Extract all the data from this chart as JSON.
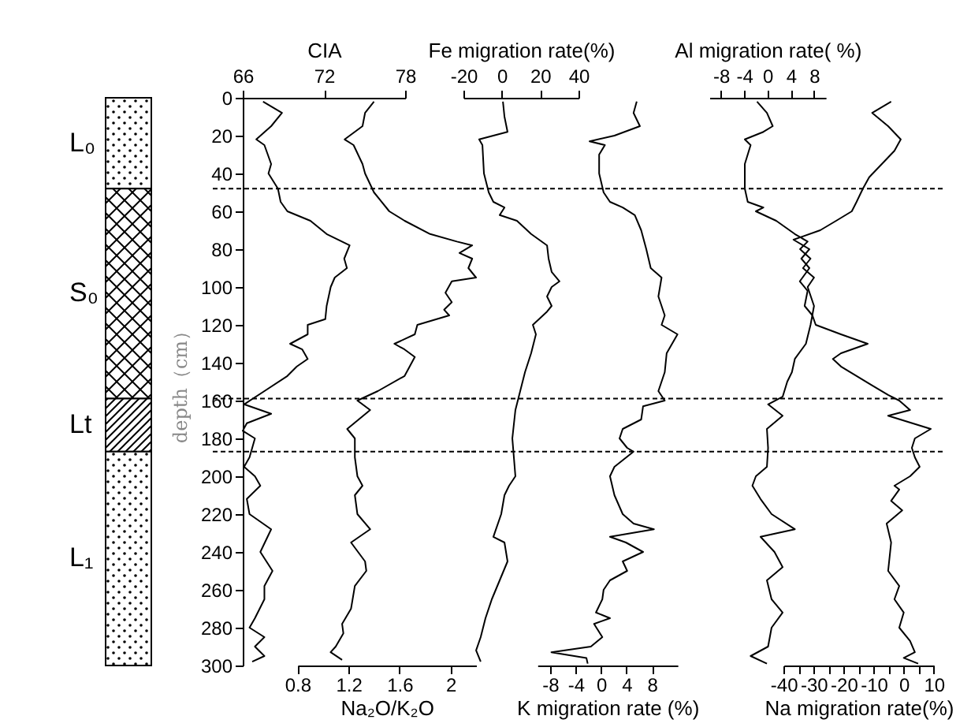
{
  "chart_data": [
    {
      "type": "line",
      "ylabel": "depth（cm）",
      "ylim": [
        300,
        0
      ],
      "yticks": [
        0,
        20,
        40,
        60,
        80,
        100,
        120,
        140,
        160,
        180,
        200,
        220,
        240,
        260,
        280,
        300
      ],
      "grid": false,
      "line_style": "solid",
      "xlabel": "Na₂O/K₂O",
      "xlim": [
        0.8,
        2.2
      ],
      "xticks": [
        0.8,
        1.2,
        1.6,
        2
      ],
      "x2label": "CIA",
      "x2lim": [
        66,
        78
      ],
      "x2ticks": [
        66,
        72,
        78
      ],
      "series": [
        {
          "axis": "x2",
          "color": "#000000",
          "x": [
            67.5,
            68.9,
            68.1,
            67.0,
            67.6,
            68.1,
            67.9,
            68.6,
            68.8,
            69.3,
            71.0,
            72.2,
            73.9,
            73.5,
            73.7,
            72.8,
            72.5,
            72.2,
            72.1,
            70.8,
            70.8,
            69.5,
            70.4,
            70.8,
            70.0,
            69.3,
            67.6,
            66.1,
            68.1,
            66.3,
            66.0,
            66.9,
            66.5,
            66.1,
            66.9,
            67.3,
            66.3,
            66.5,
            68.1,
            67.3,
            68.2,
            67.6,
            67.6,
            66.9,
            66.5,
            67.6,
            66.9,
            67.6,
            66.7
          ],
          "values": [
            2,
            8,
            15,
            22,
            25,
            35,
            40,
            48,
            55,
            60,
            65,
            72,
            78,
            85,
            90,
            95,
            100,
            110,
            117,
            120,
            125,
            130,
            133,
            138,
            142,
            147,
            155,
            162,
            167,
            172,
            176,
            180,
            190,
            195,
            200,
            205,
            212,
            220,
            228,
            240,
            250,
            258,
            265,
            275,
            280,
            285,
            290,
            295,
            298
          ]
        },
        {
          "color": "#000000",
          "x": [
            1.4,
            1.33,
            1.31,
            1.17,
            1.24,
            1.31,
            1.33,
            1.4,
            1.52,
            1.64,
            1.84,
            2.05,
            2.17,
            2.07,
            2.17,
            2.14,
            2.2,
            2.01,
            1.96,
            2.01,
            1.95,
            1.99,
            1.74,
            1.72,
            1.56,
            1.64,
            1.72,
            1.68,
            1.64,
            1.43,
            1.27,
            1.37,
            1.19,
            1.25,
            1.25,
            1.27,
            1.31,
            1.25,
            1.27,
            1.37,
            1.22,
            1.33,
            1.34,
            1.25,
            1.22,
            1.15,
            1.16,
            1.1,
            1.06,
            1.15
          ],
          "values": [
            2,
            8,
            15,
            22,
            25,
            35,
            40,
            50,
            60,
            65,
            72,
            76,
            78,
            82,
            85,
            90,
            95,
            97,
            103,
            108,
            112,
            115,
            120,
            125,
            130,
            133,
            137,
            142,
            147,
            155,
            160,
            165,
            175,
            180,
            190,
            200,
            205,
            210,
            220,
            228,
            235,
            245,
            250,
            258,
            270,
            278,
            283,
            290,
            293,
            297
          ]
        }
      ],
      "ref_lines": [
        {
          "axis": "y",
          "value": 48,
          "line_style": "dashed"
        },
        {
          "axis": "y",
          "value": 159,
          "line_style": "dashed"
        },
        {
          "axis": "y",
          "value": 187,
          "line_style": "dashed"
        }
      ],
      "annotations": [
        "L₀",
        "S₀",
        "Lt",
        "L₁"
      ]
    },
    {
      "type": "line",
      "ylim": [
        300,
        0
      ],
      "tick_labels": "x",
      "grid": false,
      "line_style": "solid",
      "xlabel": "K migration rate (%)",
      "xlim": [
        -10,
        12
      ],
      "xticks": [
        -8,
        -4,
        0,
        4,
        8
      ],
      "x2label": "Fe migration rate(%)",
      "x2lim": [
        -20,
        40
      ],
      "x2ticks": [
        -20,
        0,
        20,
        40
      ],
      "series": [
        {
          "axis": "x2",
          "color": "#000000",
          "x": [
            0.6,
            1.4,
            3.0,
            -11.8,
            -10.1,
            -9.3,
            -6.8,
            -4.4,
            1.4,
            -1.1,
            7.9,
            15.3,
            23.6,
            24.4,
            26.0,
            30.1,
            26.0,
            23.6,
            26.0,
            23.6,
            16.2,
            17.8,
            15.3,
            12.1,
            9.6,
            7.1,
            5.5,
            7.1,
            3.8,
            1.4,
            -0.3,
            -4.4,
            1.4,
            3.0,
            -1.1,
            -5.2,
            -8.5,
            -11.0,
            -13.4,
            -11.0
          ],
          "values": [
            2,
            10,
            18,
            22,
            25,
            40,
            50,
            55,
            58,
            62,
            65,
            72,
            78,
            85,
            92,
            97,
            100,
            105,
            110,
            113,
            120,
            125,
            135,
            145,
            155,
            165,
            180,
            200,
            205,
            210,
            220,
            232,
            235,
            245,
            255,
            265,
            275,
            285,
            292,
            298
          ]
        },
        {
          "color": "#000000",
          "x": [
            5.6,
            5.1,
            6.1,
            2.1,
            -1.8,
            0.6,
            -0.3,
            -0.3,
            0.4,
            1.4,
            3.4,
            5.3,
            6.3,
            7.1,
            7.8,
            9.5,
            9.0,
            10.0,
            9.5,
            12.0,
            10.3,
            10.0,
            9.0,
            10.0,
            6.6,
            6.3,
            3.4,
            2.9,
            4.1,
            5.1,
            2.1,
            1.4,
            2.1,
            3.4,
            5.1,
            8.3,
            1.4,
            3.9,
            6.6,
            3.4,
            4.1,
            1.4,
            0.4,
            0.2,
            -0.8,
            1.4,
            -1.1,
            0.2,
            -1.6,
            -7.8,
            -2.3,
            -2.1
          ],
          "values": [
            2,
            8,
            15,
            20,
            23,
            25,
            30,
            40,
            50,
            55,
            58,
            62,
            70,
            80,
            90,
            95,
            105,
            115,
            120,
            125,
            135,
            145,
            155,
            160,
            163,
            170,
            175,
            180,
            185,
            187,
            195,
            200,
            210,
            220,
            225,
            228,
            232,
            235,
            240,
            245,
            250,
            255,
            260,
            265,
            272,
            275,
            278,
            285,
            290,
            293,
            296,
            299
          ]
        }
      ],
      "ref_lines": [
        {
          "axis": "y",
          "value": 48,
          "line_style": "dashed"
        },
        {
          "axis": "y",
          "value": 159,
          "line_style": "dashed"
        },
        {
          "axis": "y",
          "value": 187,
          "line_style": "dashed"
        }
      ]
    },
    {
      "type": "line",
      "ylim": [
        300,
        0
      ],
      "tick_labels": "x",
      "grid": false,
      "line_style": "solid",
      "xlabel": "Na migration rate(%)",
      "xlim": [
        -40,
        10
      ],
      "xticks": [
        -40,
        {
          "value": -35,
          "label": null
        },
        -30,
        {
          "value": -25,
          "label": null
        },
        -20,
        {
          "value": -15,
          "label": null
        },
        -10,
        {
          "value": -5,
          "label": null
        },
        0,
        {
          "value": 5,
          "label": null
        },
        10
      ],
      "x2label": "Al migration rate( %)",
      "x2lim": [
        -10,
        10
      ],
      "x2ticks": [
        -8,
        -4,
        0,
        4,
        8
      ],
      "series": [
        {
          "axis": "x2",
          "color": "#000000",
          "x": [
            -1.8,
            -0.1,
            0.9,
            -0.7,
            -3.9,
            -2.9,
            -3.9,
            -3.9,
            -3.4,
            -0.7,
            -2.0,
            1.5,
            4.7,
            6.9,
            5.6,
            7.4,
            6.1,
            8.0,
            6.9,
            8.0,
            7.4,
            6.6,
            4.7,
            4.2,
            3.4,
            2.6,
            0.1,
            2.6,
            -0.1,
            0.1,
            -0.1,
            -2.0,
            -2.6,
            -1.2,
            0.7,
            4.7,
            -1.2,
            1.2,
            2.6,
            -0.1,
            0.7,
            2.6,
            0.7,
            0.1,
            -2.9,
            -0.1
          ],
          "values": [
            2,
            8,
            15,
            18,
            22,
            25,
            35,
            48,
            55,
            58,
            60,
            65,
            72,
            76,
            80,
            85,
            90,
            95,
            100,
            110,
            120,
            130,
            138,
            145,
            150,
            158,
            162,
            168,
            175,
            185,
            195,
            200,
            205,
            212,
            220,
            228,
            232,
            240,
            248,
            255,
            265,
            272,
            280,
            290,
            295,
            299
          ]
        },
        {
          "color": "#000000",
          "x": [
            -4.2,
            -10.5,
            -5.2,
            -1.0,
            -3.1,
            -7.3,
            -11.5,
            -13.6,
            -15.7,
            -17.3,
            -22.5,
            -27.8,
            -36.7,
            -31.4,
            -34.1,
            -31.4,
            -34.6,
            -32.0,
            -33.0,
            -30.4,
            -29.3,
            -20.9,
            -12.0,
            -20.9,
            -23.6,
            -20.9,
            -15.7,
            -10.5,
            -5.2,
            -1.5,
            2.1,
            -5.2,
            9.0,
            3.7,
            2.7,
            3.7,
            5.3,
            2.1,
            -3.1,
            -1.5,
            -4.2,
            -0.5,
            -5.7,
            -4.2,
            -5.2,
            -1.5,
            -3.1,
            0.0,
            -1.5,
            2.1,
            3.7,
            0.0,
            4.8
          ],
          "values": [
            2,
            8,
            15,
            22,
            28,
            35,
            42,
            48,
            55,
            60,
            65,
            70,
            75,
            80,
            85,
            90,
            97,
            102,
            110,
            115,
            120,
            125,
            130,
            135,
            138,
            142,
            147,
            152,
            157,
            160,
            165,
            168,
            175,
            180,
            185,
            190,
            195,
            200,
            205,
            207,
            213,
            218,
            225,
            235,
            250,
            258,
            265,
            272,
            280,
            287,
            293,
            296,
            299
          ]
        }
      ],
      "ref_lines": [
        {
          "axis": "y",
          "value": 48,
          "line_style": "dashed"
        },
        {
          "axis": "y",
          "value": 159,
          "line_style": "dashed"
        },
        {
          "axis": "y",
          "value": 187,
          "line_style": "dashed"
        }
      ]
    }
  ]
}
